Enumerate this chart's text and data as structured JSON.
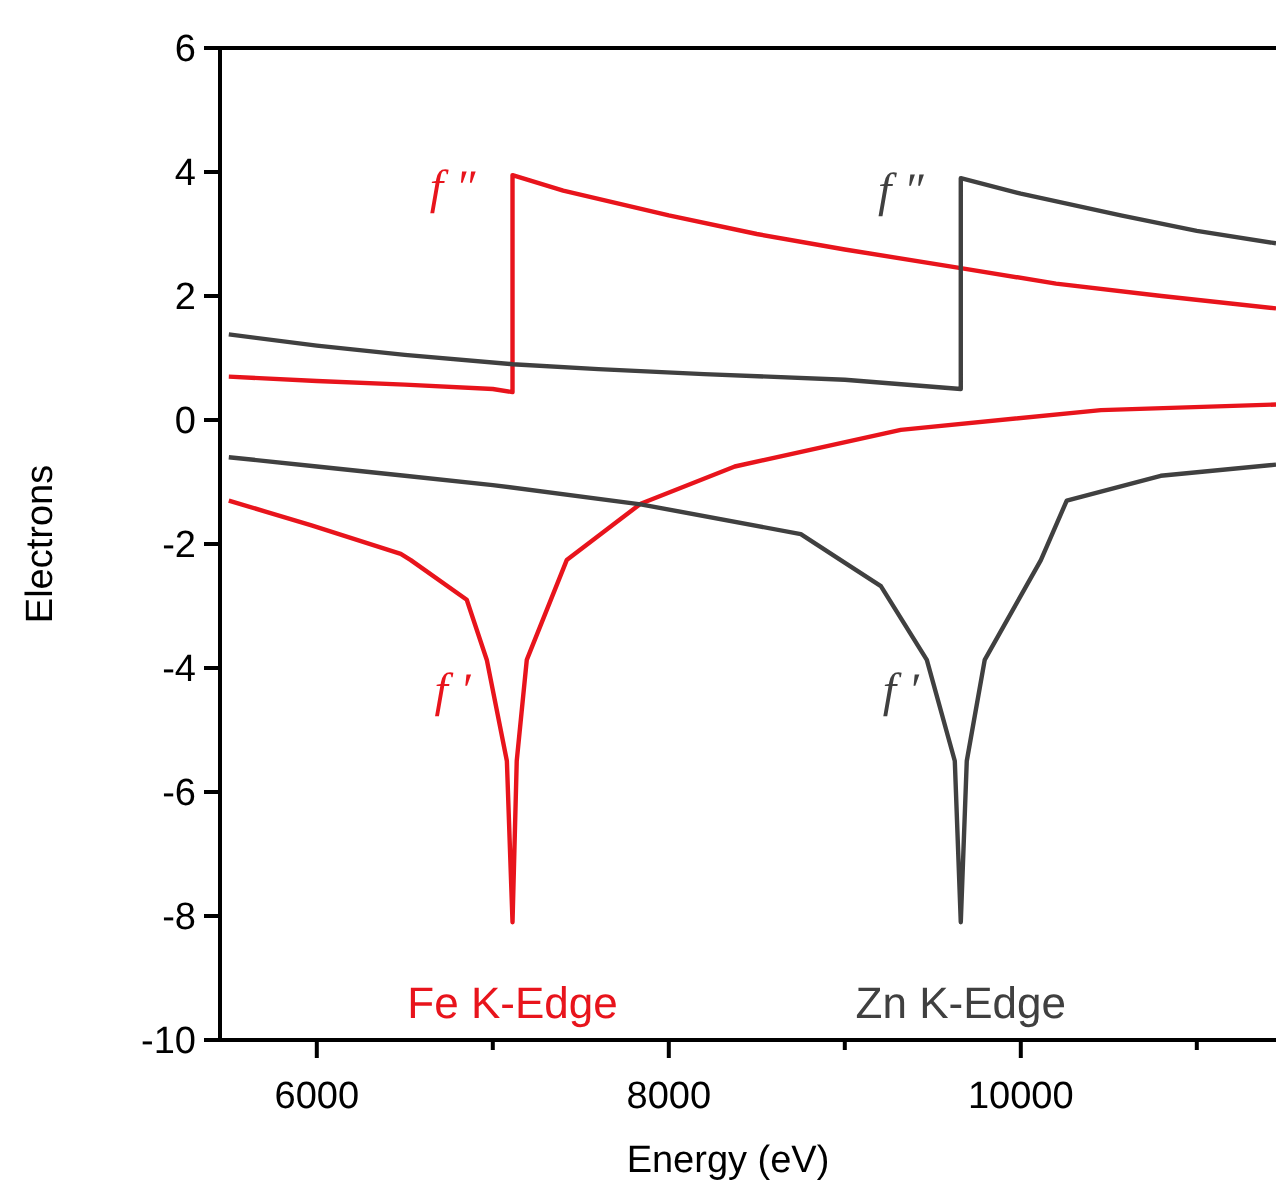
{
  "chart_data": {
    "type": "line",
    "xlabel": "Energy (eV)",
    "ylabel": "Electrons",
    "xlim": [
      5450,
      11450
    ],
    "ylim": [
      -10,
      6
    ],
    "xticks": [
      6000,
      {
        "value": 7000,
        "label": null
      },
      8000,
      {
        "value": 9000,
        "label": null
      },
      10000,
      {
        "value": 11000,
        "label": null
      }
    ],
    "yticks": [
      -10,
      -8,
      -6,
      -4,
      -2,
      0,
      2,
      4,
      6
    ],
    "grid": false,
    "marker": "none",
    "line_style": "solid",
    "series": [
      {
        "color": "#e8141c",
        "x": [
          5500,
          6000,
          6500,
          7000,
          7112,
          7112,
          7400,
          8000,
          8500,
          9000,
          9659,
          10200,
          10800,
          11450
        ],
        "values": [
          0.7,
          0.63,
          0.57,
          0.5,
          0.45,
          3.95,
          3.7,
          3.3,
          3.0,
          2.75,
          2.45,
          2.2,
          2.0,
          1.8
        ]
      },
      {
        "name": "Fe K-Edge",
        "color": "#e8141c",
        "x": [
          5500,
          5970,
          6477,
          6534,
          6852,
          6966,
          7080,
          7112,
          7136,
          7193,
          7420,
          7614,
          7840,
          8375,
          9318,
          10455,
          11450
        ],
        "values": [
          -1.3,
          -1.7,
          -2.16,
          -2.26,
          -2.9,
          -3.87,
          -5.5,
          -8.1,
          -5.5,
          -3.87,
          -2.26,
          -1.84,
          -1.35,
          -0.75,
          -0.16,
          0.16,
          0.25
        ]
      },
      {
        "color": "#404040",
        "x": [
          5500,
          6000,
          6500,
          7112,
          7600,
          8200,
          9000,
          9659,
          9659,
          10000,
          10568,
          11000,
          11450
        ],
        "values": [
          1.38,
          1.2,
          1.05,
          0.9,
          0.82,
          0.74,
          0.65,
          0.5,
          3.9,
          3.65,
          3.3,
          3.05,
          2.85
        ]
      },
      {
        "name": "Zn K-Edge",
        "color": "#404040",
        "x": [
          5500,
          6000,
          6500,
          7000,
          7840,
          8750,
          8977,
          9205,
          9466,
          9625,
          9659,
          9693,
          9795,
          10114,
          10261,
          10795,
          11450
        ],
        "values": [
          -0.6,
          -0.75,
          -0.9,
          -1.05,
          -1.36,
          -1.84,
          -2.26,
          -2.68,
          -3.87,
          -5.5,
          -8.1,
          -5.5,
          -3.87,
          -2.26,
          -1.3,
          -0.9,
          -0.72
        ]
      }
    ],
    "annotations": [
      "f ″",
      "f ′",
      "f ″",
      "f ′"
    ]
  }
}
